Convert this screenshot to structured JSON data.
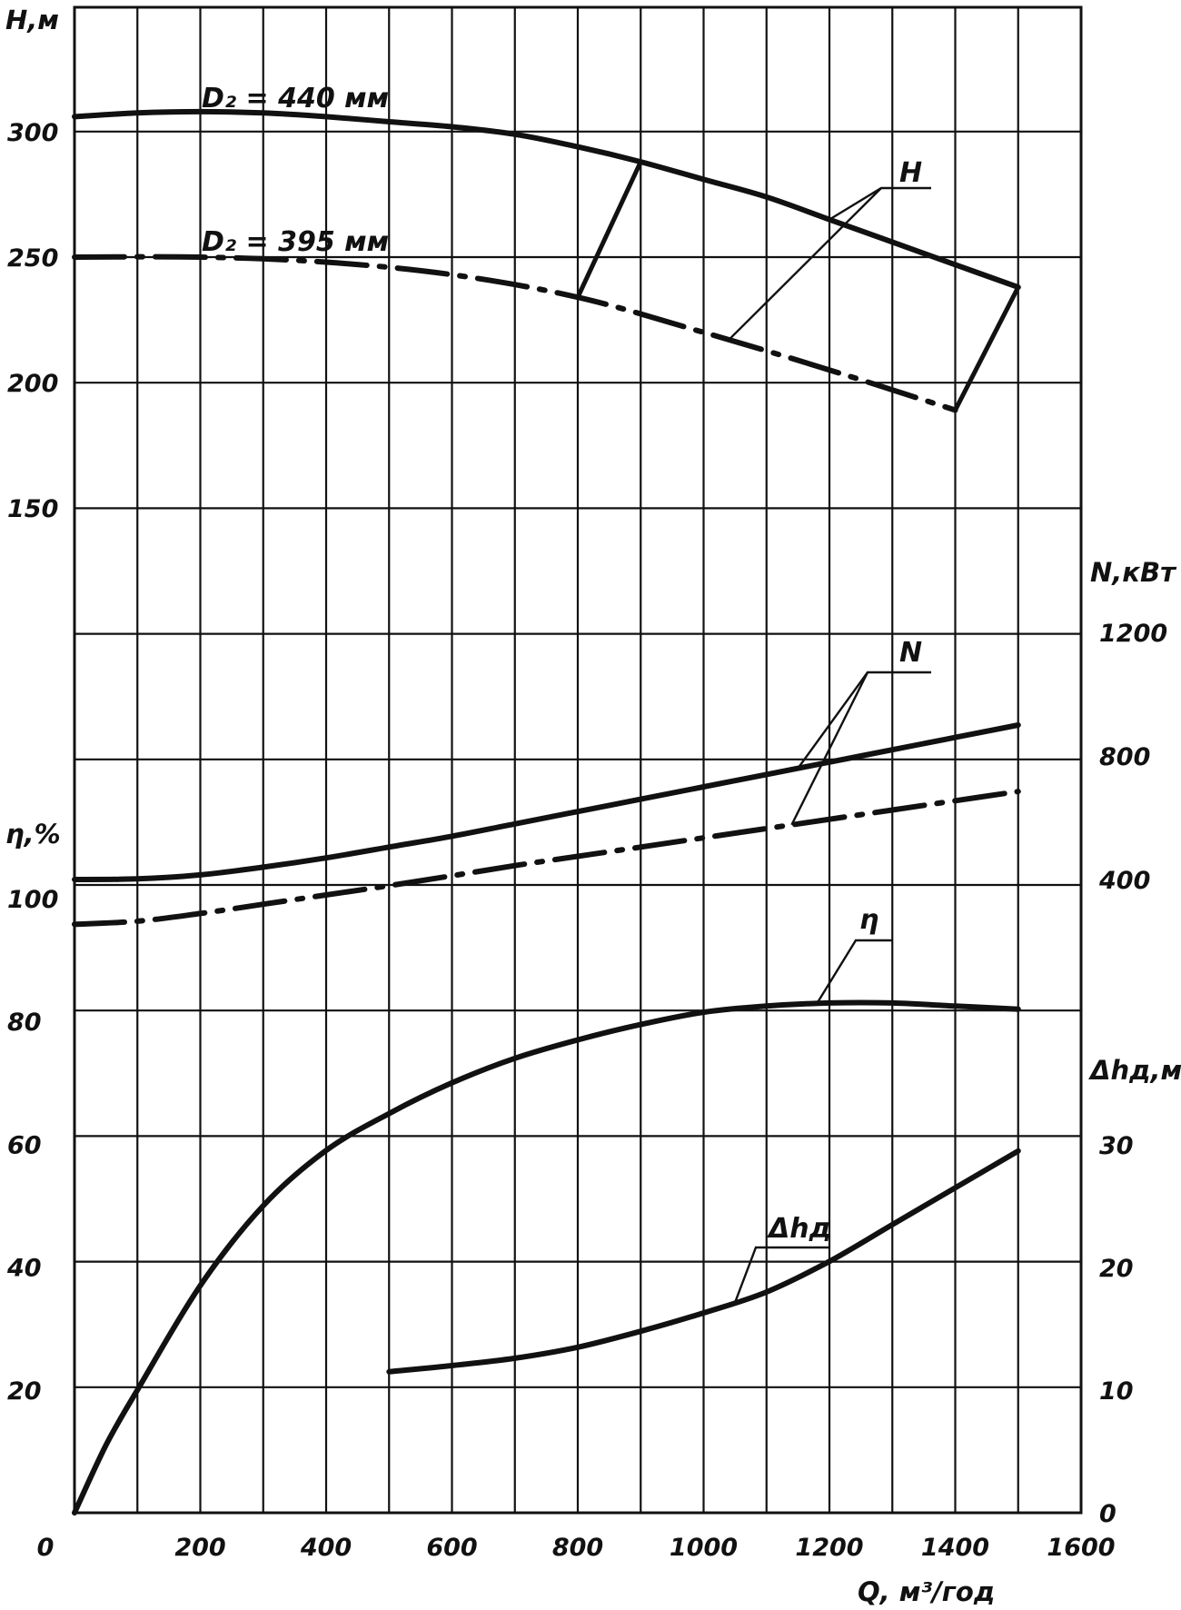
{
  "chart_data": {
    "type": "line",
    "x_axis": {
      "label": "Q, м³/год",
      "range": [
        0,
        1600
      ],
      "ticks": [
        0,
        200,
        400,
        600,
        800,
        1000,
        1200,
        1400,
        1600
      ],
      "tick_labels": [
        "0",
        "200",
        "400",
        "600",
        "800",
        "1000",
        "1200",
        "1400",
        "1600"
      ]
    },
    "y_axes": {
      "H": {
        "label": "H,м",
        "side": "left",
        "ticks": [
          150,
          200,
          250,
          300
        ],
        "tick_labels": [
          "150",
          "200",
          "250",
          "300"
        ]
      },
      "eta": {
        "label": "η,%",
        "side": "left",
        "ticks": [
          20,
          40,
          60,
          80,
          100
        ],
        "tick_labels": [
          "20",
          "40",
          "60",
          "80",
          "100"
        ]
      },
      "N": {
        "label": "N,кВт",
        "side": "right",
        "ticks": [
          400,
          800,
          1200
        ],
        "tick_labels": [
          "400",
          "800",
          "1200"
        ]
      },
      "dh": {
        "label": "Δhд,м",
        "side": "right",
        "ticks": [
          0,
          10,
          20,
          30
        ],
        "tick_labels": [
          "0",
          "10",
          "20",
          "30"
        ]
      }
    },
    "grid": true,
    "curve_labels": {
      "H": "H",
      "N": "N",
      "eta": "η",
      "dh": "Δhд",
      "d440": "D₂ = 440 мм",
      "d395": "D₂ = 395 мм"
    },
    "series": [
      {
        "curve": "H",
        "name": "D₂ = 440 мм",
        "axis": "H",
        "style": "solid",
        "x": [
          0,
          100,
          200,
          300,
          400,
          500,
          600,
          700,
          800,
          900,
          1000,
          1100,
          1200,
          1300,
          1400,
          1500
        ],
        "y": [
          306,
          307.5,
          308,
          307.5,
          306,
          304,
          302,
          299,
          294,
          288,
          281,
          274,
          265,
          256,
          247,
          238
        ]
      },
      {
        "curve": "H",
        "name": "D₂ = 395 мм",
        "axis": "H",
        "style": "dash-dot",
        "x": [
          0,
          200,
          400,
          600,
          800,
          1000,
          1200,
          1400
        ],
        "y": [
          250,
          250,
          248,
          243,
          234,
          220,
          205,
          189
        ]
      },
      {
        "curve": "N",
        "name": "D₂ = 440 мм",
        "axis": "N",
        "style": "solid",
        "x": [
          0,
          100,
          200,
          300,
          400,
          500,
          600,
          700,
          800,
          900,
          1000,
          1100,
          1200,
          1300,
          1400,
          1500
        ],
        "y": [
          400,
          402,
          415,
          440,
          470,
          505,
          540,
          580,
          620,
          660,
          700,
          740,
          780,
          820,
          860,
          900
        ]
      },
      {
        "curve": "N",
        "name": "D₂ = 395 мм",
        "axis": "N",
        "style": "dash-dot",
        "x": [
          0,
          100,
          200,
          300,
          400,
          500,
          600,
          700,
          800,
          900,
          1000,
          1100,
          1200,
          1300,
          1400,
          1500
        ],
        "y": [
          255,
          265,
          290,
          320,
          350,
          380,
          412,
          445,
          475,
          505,
          535,
          565,
          595,
          625,
          655,
          685
        ]
      },
      {
        "curve": "eta",
        "name": "",
        "axis": "eta",
        "style": "solid",
        "x": [
          0,
          50,
          100,
          200,
          300,
          400,
          500,
          600,
          700,
          800,
          900,
          1000,
          1100,
          1200,
          1300,
          1400,
          1500
        ],
        "y": [
          0,
          11,
          20,
          37,
          50,
          59,
          65,
          70,
          74,
          77,
          79.5,
          81.5,
          82.5,
          83,
          83,
          82.5,
          82
        ]
      },
      {
        "curve": "dh",
        "name": "",
        "axis": "dh",
        "style": "solid",
        "x": [
          500,
          600,
          700,
          800,
          900,
          1000,
          1100,
          1200,
          1300,
          1400,
          1500
        ],
        "y": [
          11.5,
          12,
          12.6,
          13.5,
          14.8,
          16.3,
          18,
          20.5,
          23.5,
          26.5,
          29.5
        ]
      }
    ]
  }
}
